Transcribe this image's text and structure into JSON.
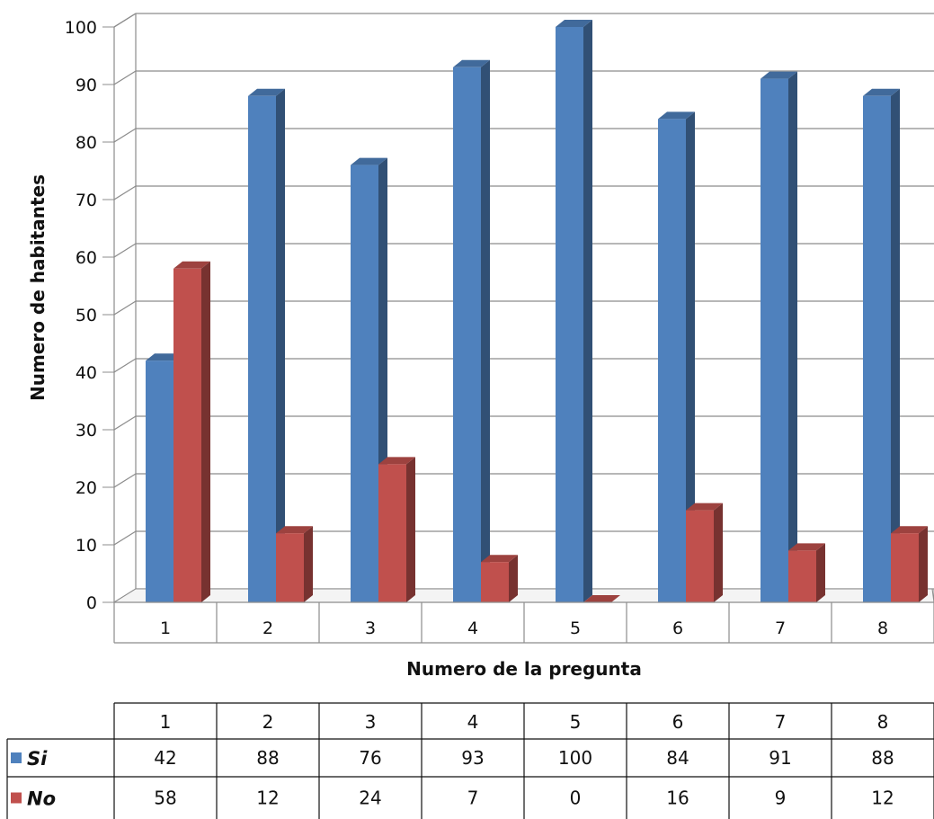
{
  "chart_data": {
    "type": "bar",
    "title": "",
    "xlabel": "Numero de la pregunta",
    "ylabel": "Numero de habitantes",
    "ylim": [
      0,
      100
    ],
    "yticks": [
      0,
      10,
      20,
      30,
      40,
      50,
      60,
      70,
      80,
      90,
      100
    ],
    "grid": true,
    "categories": [
      "1",
      "2",
      "3",
      "4",
      "5",
      "6",
      "7",
      "8"
    ],
    "series": [
      {
        "name": "Si",
        "color": "#4f81bd",
        "values": [
          42,
          88,
          76,
          93,
          100,
          84,
          91,
          88
        ]
      },
      {
        "name": "No",
        "color": "#c0504d",
        "values": [
          58,
          12,
          24,
          7,
          0,
          16,
          9,
          12
        ]
      }
    ],
    "data_table": true
  }
}
